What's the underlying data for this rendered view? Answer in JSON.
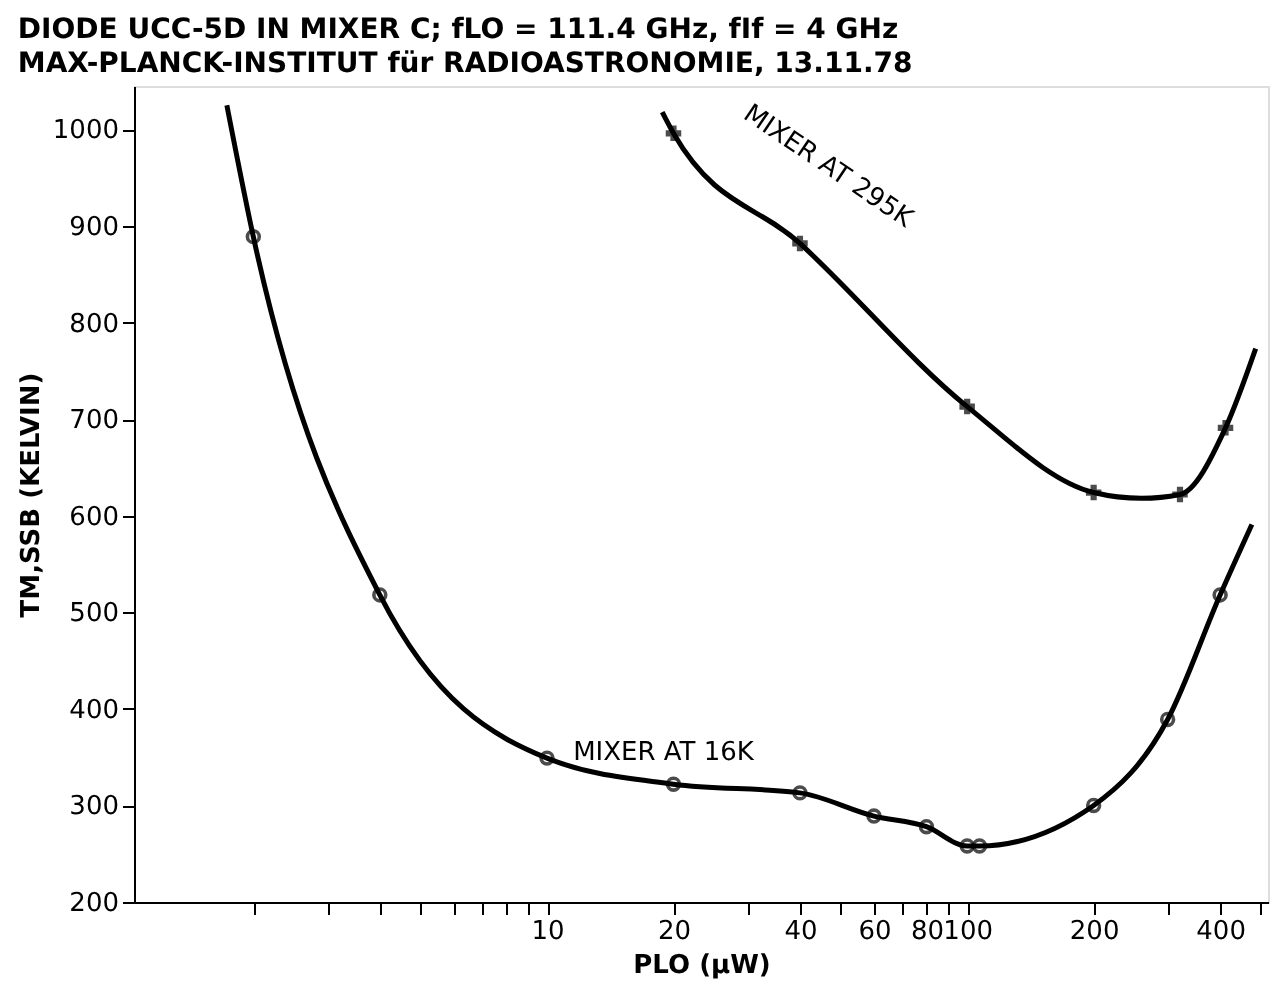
{
  "chart_data": {
    "type": "line",
    "title": "DIODE UCC-5D IN MIXER C; fLO = 111.4 GHz, fIf = 4 GHz",
    "subtitle": "MAX-PLANCK-INSTITUT für RADIOASTRONOMIE, 13.11.78",
    "xlabel": "PLO (µW)",
    "ylabel": "TM,SSB (KELVIN)",
    "log": "x",
    "grid": false,
    "legend": false,
    "line_style": "solid",
    "xlim": [
      1.04,
      520
    ],
    "ylim": [
      200,
      1045
    ],
    "xticks": [
      {
        "value": 2,
        "label": null
      },
      {
        "value": 3,
        "label": null
      },
      {
        "value": 4,
        "label": null
      },
      {
        "value": 5,
        "label": null
      },
      {
        "value": 6,
        "label": null
      },
      {
        "value": 7,
        "label": null
      },
      {
        "value": 8,
        "label": null
      },
      {
        "value": 9,
        "label": null
      },
      10,
      20,
      {
        "value": 30,
        "label": null
      },
      40,
      {
        "value": 50,
        "label": null
      },
      60,
      {
        "value": 70,
        "label": null
      },
      80,
      {
        "value": 90,
        "label": null
      },
      100,
      200,
      {
        "value": 300,
        "label": null
      },
      400,
      {
        "value": 500,
        "label": null
      }
    ],
    "yticks": [
      200,
      300,
      400,
      500,
      600,
      700,
      800,
      900,
      1000
    ],
    "series": [
      {
        "name": "MIXER AT 16K",
        "marker": "none",
        "color": "#000000",
        "x": [
          1.73,
          2,
          4,
          10,
          20,
          40,
          60,
          80,
          100,
          107,
          200,
          300,
          400,
          476
        ],
        "values": [
          1025,
          889,
          518,
          349,
          322,
          313,
          289,
          278,
          258,
          258,
          300,
          389,
          518,
          591
        ]
      },
      {
        "type": "scatter",
        "marker": "circle",
        "color": "#000000",
        "x": [
          2,
          4,
          10,
          20,
          40,
          60,
          80,
          100,
          107,
          200,
          300,
          400
        ],
        "values": [
          889,
          518,
          349,
          322,
          313,
          289,
          278,
          258,
          258,
          300,
          389,
          518
        ]
      },
      {
        "name": "MIXER AT 295K",
        "marker": "none",
        "color": "#000000",
        "x": [
          18.8,
          20,
          40,
          100,
          200,
          260,
          321,
          412,
          486
        ],
        "values": [
          1018,
          996,
          882,
          713,
          624,
          618,
          622,
          691,
          773
        ]
      },
      {
        "type": "scatter",
        "marker": "cross",
        "color": "#000000",
        "x": [
          20,
          40,
          100,
          200,
          321,
          412
        ],
        "values": [
          996,
          882,
          713,
          624,
          622,
          691
        ]
      }
    ]
  }
}
